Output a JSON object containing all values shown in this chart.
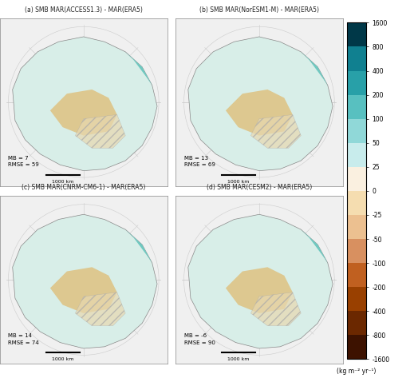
{
  "panels": [
    {
      "label": "(a) SMB MAR(ACCESS1.3) - MAR(ERA5)",
      "mb": 7,
      "rmse": 59
    },
    {
      "label": "(b) SMB MAR(NorESM1-M) - MAR(ERA5)",
      "mb": 13,
      "rmse": 69
    },
    {
      "label": "(c) SMB MAR(CNRM-CM6-1) - MAR(ERA5)",
      "mb": 14,
      "rmse": 74
    },
    {
      "label": "(d) SMB MAR(CESM2) - MAR(ERA5)",
      "mb": -6,
      "rmse": 90
    }
  ],
  "colorbar_levels": [
    -1600,
    -800,
    -400,
    -200,
    -100,
    -50,
    -25,
    0,
    25,
    50,
    100,
    200,
    400,
    800,
    1600
  ],
  "colorbar_label": "(kg m⁻² yr⁻¹)",
  "colorbar_colors": [
    "#4a1a00",
    "#7b3000",
    "#a84800",
    "#c87030",
    "#d49060",
    "#e8c090",
    "#f0d8b0",
    "#f5ecd8",
    "#d8eff0",
    "#b0e0e0",
    "#80cccc",
    "#50b0b8",
    "#208090",
    "#006878",
    "#004050"
  ],
  "background_color": "#ffffff",
  "map_bg_color": "#e8f4f8",
  "antarctica_colors": {
    "ice_center": "#e0f4f4",
    "coast_teal": "#70c8c0",
    "warm_brown": "#c8a070",
    "hatched": "#d0c0a0"
  }
}
